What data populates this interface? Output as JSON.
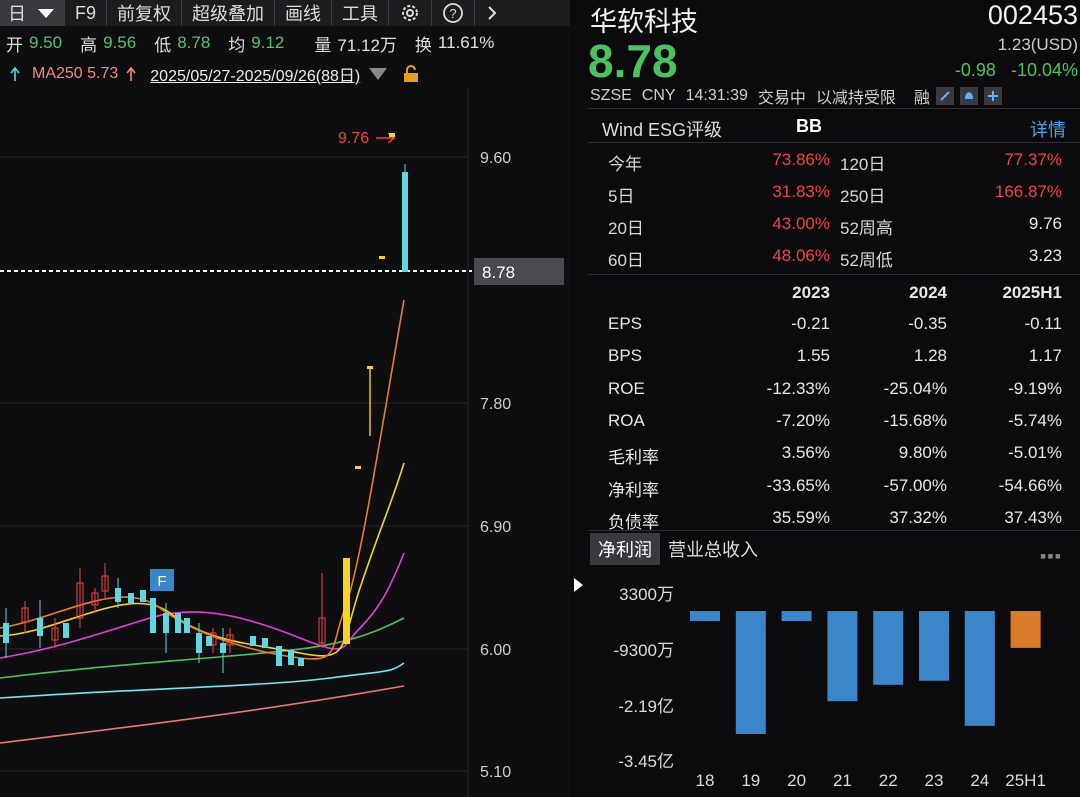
{
  "toolbar": {
    "period": "日",
    "items": [
      "F9",
      "前复权",
      "超级叠加",
      "画线",
      "工具"
    ],
    "icons": [
      "gear-icon",
      "help-icon",
      "chevron-right-icon"
    ]
  },
  "quote_row": {
    "open_label": "开",
    "open": "9.50",
    "high_label": "高",
    "high": "9.56",
    "low_label": "低",
    "low": "8.78",
    "avg_label": "均",
    "avg": "9.12",
    "volume_label": "量",
    "volume": "71.12万",
    "turnover_label": "换",
    "turnover": "11.61%"
  },
  "ma_row": {
    "ma250": "MA250 5.73",
    "range": "2025/05/27-2025/09/26(88日)"
  },
  "chart": {
    "price_labels": [
      "9.60",
      "8.78",
      "7.80",
      "6.90",
      "6.00",
      "5.10"
    ],
    "current_price": "8.78",
    "high_marker": "9.76",
    "event_badge": "F"
  },
  "stock": {
    "name": "华软科技",
    "code": "002453",
    "price": "8.78",
    "usd": "1.23(USD)",
    "change": "-0.98",
    "change_pct": "-10.04%",
    "exchange": "SZSE",
    "currency": "CNY",
    "time": "14:31:39",
    "status": "交易中",
    "note": "以减持受限",
    "margin": "融"
  },
  "esg": {
    "label": "Wind ESG评级",
    "value": "BB",
    "link": "详情"
  },
  "perf": [
    {
      "l1": "今年",
      "v1": "73.86%",
      "l2": "120日",
      "v2": "77.37%"
    },
    {
      "l1": "5日",
      "v1": "31.83%",
      "l2": "250日",
      "v2": "166.87%"
    },
    {
      "l1": "20日",
      "v1": "43.00%",
      "l2": "52周高",
      "v2": "9.76"
    },
    {
      "l1": "60日",
      "v1": "48.06%",
      "l2": "52周低",
      "v2": "3.23"
    }
  ],
  "financials": {
    "headers": [
      "2023",
      "2024",
      "2025H1"
    ],
    "rows": [
      {
        "label": "EPS",
        "values": [
          "-0.21",
          "-0.35",
          "-0.11"
        ]
      },
      {
        "label": "BPS",
        "values": [
          "1.55",
          "1.28",
          "1.17"
        ]
      },
      {
        "label": "ROE",
        "values": [
          "-12.33%",
          "-25.04%",
          "-9.19%"
        ]
      },
      {
        "label": "ROA",
        "values": [
          "-7.20%",
          "-15.68%",
          "-5.74%"
        ]
      },
      {
        "label": "毛利率",
        "values": [
          "3.56%",
          "9.80%",
          "-5.01%"
        ]
      },
      {
        "label": "净利率",
        "values": [
          "-33.65%",
          "-57.00%",
          "-54.66%"
        ]
      },
      {
        "label": "负债率",
        "values": [
          "35.59%",
          "37.32%",
          "37.43%"
        ]
      }
    ]
  },
  "tabs": [
    "净利润",
    "营业总收入"
  ],
  "chart_data": {
    "type": "bar",
    "categories": [
      "18",
      "19",
      "20",
      "21",
      "22",
      "23",
      "24",
      "25H1"
    ],
    "values": [
      -0.08,
      -3.0,
      -0.04,
      -2.2,
      -1.8,
      -1.7,
      -2.8,
      -0.9
    ],
    "unit_note": "亿",
    "ytick_labels": [
      "3300万",
      "-9300万",
      "-2.19亿",
      "-3.45亿"
    ],
    "ylim": [
      -3.55,
      0.4
    ],
    "colors": {
      "normal": "#3a86c8",
      "latest": "#d97b28"
    }
  }
}
